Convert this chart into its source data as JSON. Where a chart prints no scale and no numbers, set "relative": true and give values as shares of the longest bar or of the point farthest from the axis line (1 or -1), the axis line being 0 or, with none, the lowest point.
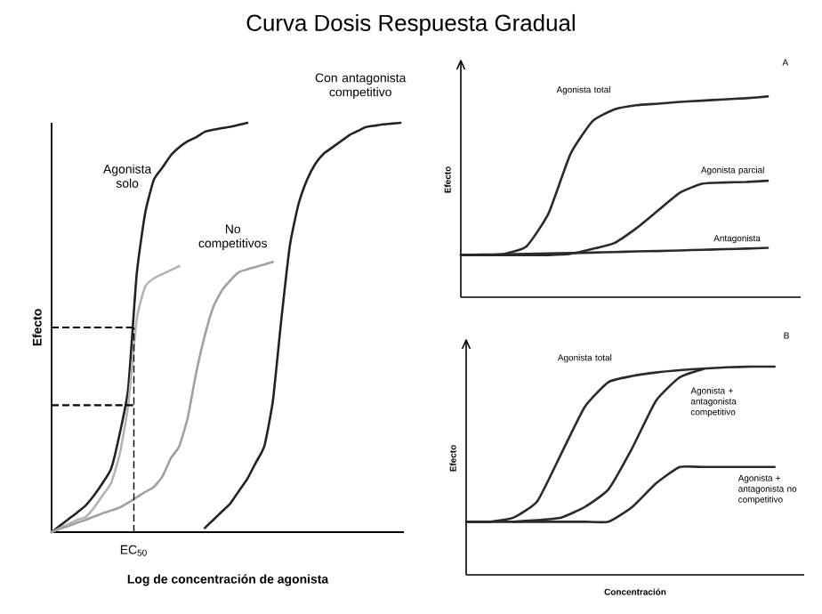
{
  "chart_data": [
    {
      "type": "line",
      "title": "Curva Dosis Respuesta Gradual",
      "xlabel": "Log de concentración de agonista",
      "ylabel": "Efecto",
      "relative": true,
      "annotations": [
        "EC$_{50}$"
      ],
      "categories": [
        null,
        null,
        null,
        null,
        null,
        null,
        null,
        null,
        null,
        null,
        null,
        null,
        null,
        null,
        null,
        null,
        null,
        null,
        null,
        null,
        null,
        null,
        null,
        null,
        null,
        null,
        null,
        null,
        null,
        null,
        null,
        null,
        null,
        null,
        null,
        null,
        null,
        null,
        null,
        null,
        null,
        null
      ],
      "ref_lines": [
        {
          "axis": "y",
          "value": 0.5,
          "line_style": "dashed"
        },
        {
          "axis": "y",
          "value": 0.31,
          "line_style": "dashed"
        }
      ],
      "series": [
        {
          "name": "Agonista solo",
          "color": "#222222",
          "values": [
            0,
            0.016,
            0.032,
            0.048,
            0.065,
            0.09,
            0.12,
            0.155,
            0.24,
            0.35,
            0.63,
            0.78,
            0.86,
            0.89,
            0.92,
            0.94,
            0.955,
            0.965,
            0.978,
            0.983,
            0.987,
            0.99,
            0.995,
            1.0,
            null,
            null,
            null,
            null,
            null,
            null,
            null,
            null,
            null,
            null,
            null,
            null,
            null,
            null,
            null,
            null,
            null,
            null
          ]
        },
        {
          "color": "#b4b4b4",
          "values": [
            0,
            0.01,
            0.02,
            0.03,
            0.037,
            0.06,
            0.09,
            0.12,
            0.19,
            0.31,
            0.52,
            0.6,
            0.62,
            0.63,
            0.64,
            0.65,
            null,
            null,
            null,
            null,
            null,
            null,
            null,
            null,
            null,
            null,
            null,
            null,
            null,
            null,
            null,
            null,
            null,
            null,
            null,
            null,
            null,
            null,
            null,
            null,
            null,
            null
          ]
        },
        {
          "name": "No competitivos",
          "color": "#a0a0a0",
          "values": [
            0,
            0.008,
            0.015,
            0.023,
            0.03,
            0.038,
            0.046,
            0.053,
            0.06,
            0.072,
            0.085,
            0.098,
            0.11,
            0.135,
            0.18,
            0.21,
            0.28,
            0.39,
            0.48,
            0.55,
            0.59,
            0.615,
            0.635,
            0.642,
            0.648,
            0.654,
            0.66,
            null,
            null,
            null,
            null,
            null,
            null,
            null,
            null,
            null,
            null,
            null,
            null,
            null,
            null,
            null
          ]
        },
        {
          "name": "Con antagonista competitivo",
          "color": "#222222",
          "values": [
            null,
            null,
            null,
            null,
            null,
            null,
            null,
            null,
            null,
            null,
            null,
            null,
            null,
            null,
            null,
            null,
            null,
            null,
            0.01,
            0.03,
            0.05,
            0.07,
            0.1,
            0.13,
            0.17,
            0.21,
            0.32,
            0.52,
            0.7,
            0.8,
            0.86,
            0.9,
            0.925,
            0.94,
            0.955,
            0.97,
            0.98,
            0.99,
            0.993,
            0.996,
            0.998,
            1.0
          ]
        }
      ]
    },
    {
      "type": "line",
      "ylabel": "Efecto",
      "relative": true,
      "annotations": [
        "A"
      ],
      "categories": [
        null,
        null,
        null,
        null,
        null,
        null,
        null,
        null,
        null,
        null,
        null,
        null,
        null,
        null,
        null
      ],
      "series": [
        {
          "name": "Agonista total",
          "color": "#2a2a2a",
          "values": [
            0.21,
            0.21,
            0.216,
            0.254,
            0.417,
            0.713,
            0.876,
            0.935,
            0.956,
            0.964,
            0.973,
            0.979,
            0.985,
            0.991,
            1.0
          ]
        },
        {
          "name": "Agonista parcial",
          "color": "#2a2a2a",
          "values": [
            0.21,
            0.21,
            0.21,
            0.21,
            0.21,
            0.216,
            0.24,
            0.27,
            0.343,
            0.432,
            0.521,
            0.565,
            0.571,
            0.574,
            0.58
          ]
        },
        {
          "name": "Antagonista",
          "color": "#2a2a2a",
          "values": [
            0.21,
            0.212,
            0.214,
            0.216,
            0.218,
            0.22,
            0.222,
            0.225,
            0.228,
            0.23,
            0.233,
            0.236,
            0.239,
            0.242,
            0.246
          ]
        }
      ]
    },
    {
      "type": "line",
      "xlabel": "Concentración",
      "ylabel": "Efecto",
      "relative": true,
      "annotations": [
        "B"
      ],
      "categories": [
        null,
        null,
        null,
        null,
        null,
        null,
        null,
        null,
        null,
        null,
        null,
        null,
        null,
        null
      ],
      "series": [
        {
          "name": "Agonista total",
          "color": "#2a2a2a",
          "values": [
            0.255,
            0.255,
            0.275,
            0.354,
            0.58,
            0.807,
            0.926,
            0.955,
            0.972,
            0.983,
            0.991,
            0.997,
            1.0,
            1.0
          ]
        },
        {
          "name": "Agonista + antagonista competitivo",
          "color": "#2a2a2a",
          "values": [
            null,
            null,
            0.255,
            0.263,
            0.275,
            0.326,
            0.411,
            0.609,
            0.836,
            0.949,
            0.989,
            null,
            null,
            null
          ]
        },
        {
          "name": "Agonista + antagonista no competitivo",
          "color": "#2a2a2a",
          "values": [
            0.255,
            0.255,
            0.255,
            0.255,
            0.255,
            0.255,
            0.255,
            0.326,
            0.439,
            0.518,
            0.518,
            0.518,
            0.518,
            0.518
          ]
        }
      ]
    }
  ]
}
